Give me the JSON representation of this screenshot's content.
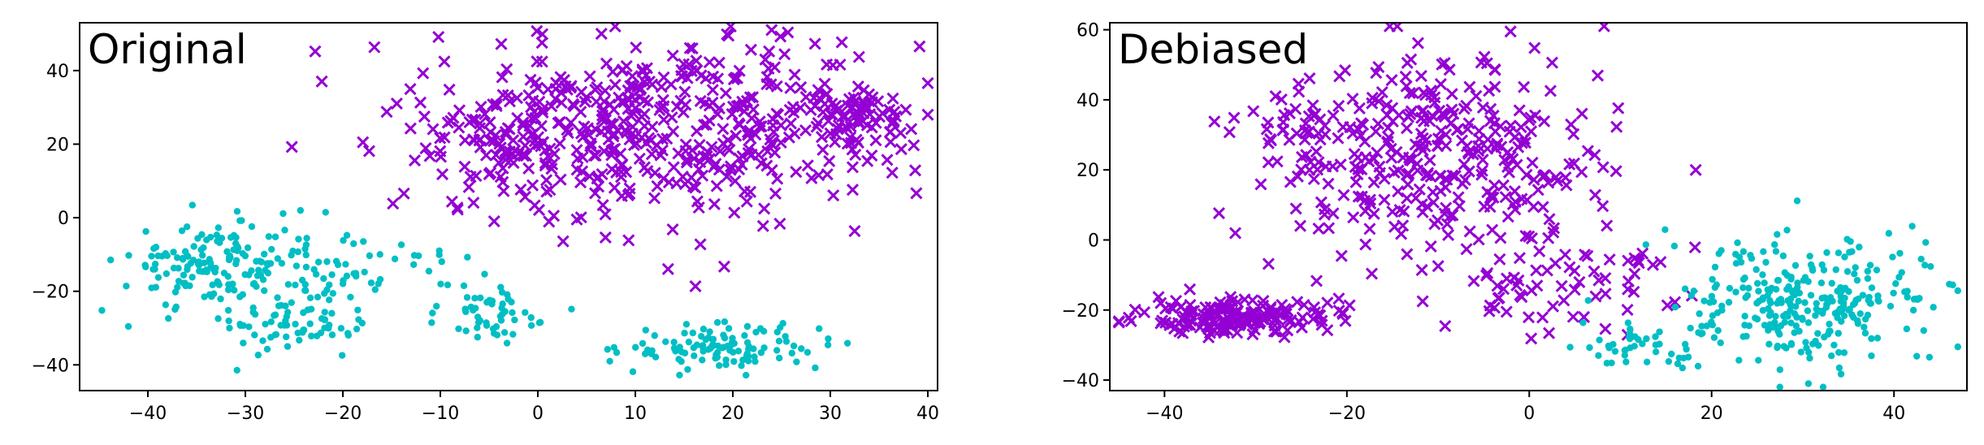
{
  "colors": {
    "group_a": "#00BFC4",
    "group_b": "#9400D3"
  },
  "chart_data": [
    {
      "type": "scatter",
      "title": "Original",
      "xlim": [
        -47,
        41
      ],
      "ylim": [
        -47,
        53
      ],
      "xticks": [
        -40,
        -30,
        -20,
        -10,
        0,
        10,
        20,
        30,
        40
      ],
      "yticks": [
        -40,
        -20,
        0,
        20,
        40
      ],
      "xtick_labels": [
        "−40",
        "−30",
        "−20",
        "−10",
        "0",
        "10",
        "20",
        "30",
        "40"
      ],
      "ytick_labels": [
        "−40",
        "−20",
        "0",
        "20",
        "40"
      ],
      "grid": false,
      "legend": false,
      "clusters": [
        {
          "marker": "dot",
          "color": "#00BFC4",
          "cx": -33,
          "cy": -13,
          "sx": 4.5,
          "sy": 6,
          "n": 160
        },
        {
          "marker": "dot",
          "color": "#00BFC4",
          "cx": -25,
          "cy": -30,
          "sx": 3,
          "sy": 4,
          "n": 55
        },
        {
          "marker": "dot",
          "color": "#00BFC4",
          "cx": -22,
          "cy": -16,
          "sx": 3,
          "sy": 8,
          "n": 45
        },
        {
          "marker": "dot",
          "color": "#00BFC4",
          "cx": -12,
          "cy": -14,
          "sx": 3,
          "sy": 3,
          "n": 20
        },
        {
          "marker": "dot",
          "color": "#00BFC4",
          "cx": -4,
          "cy": -26,
          "sx": 4,
          "sy": 4,
          "n": 50
        },
        {
          "marker": "dot",
          "color": "#00BFC4",
          "cx": 19,
          "cy": -35,
          "sx": 5,
          "sy": 3,
          "n": 110
        },
        {
          "marker": "x",
          "color": "#9400D3",
          "cx": 13,
          "cy": 25,
          "sx": 12,
          "sy": 13,
          "n": 480
        },
        {
          "marker": "x",
          "color": "#9400D3",
          "cx": 33,
          "cy": 27,
          "sx": 2.5,
          "sy": 3.5,
          "n": 60
        },
        {
          "marker": "x",
          "color": "#9400D3",
          "cx": -3,
          "cy": 20,
          "sx": 5,
          "sy": 7,
          "n": 60
        }
      ]
    },
    {
      "type": "scatter",
      "title": "Debiased",
      "xlim": [
        -46,
        48
      ],
      "ylim": [
        -43,
        62
      ],
      "xticks": [
        -40,
        -20,
        0,
        20,
        40
      ],
      "yticks": [
        -40,
        -20,
        0,
        20,
        40,
        60
      ],
      "xtick_labels": [
        "−40",
        "−20",
        "0",
        "20",
        "40"
      ],
      "ytick_labels": [
        "−40",
        "−20",
        "0",
        "20",
        "40",
        "60"
      ],
      "grid": false,
      "legend": false,
      "clusters": [
        {
          "marker": "x",
          "color": "#9400D3",
          "cx": -32,
          "cy": -22,
          "sx": 5,
          "sy": 2.5,
          "n": 170
        },
        {
          "marker": "x",
          "color": "#9400D3",
          "cx": -10,
          "cy": 25,
          "sx": 9,
          "sy": 15,
          "n": 330
        },
        {
          "marker": "x",
          "color": "#9400D3",
          "cx": 4,
          "cy": -12,
          "sx": 7,
          "sy": 8,
          "n": 70
        },
        {
          "marker": "x",
          "color": "#9400D3",
          "cx": -25,
          "cy": 30,
          "sx": 3,
          "sy": 6,
          "n": 35
        },
        {
          "marker": "dot",
          "color": "#00BFC4",
          "cx": 30,
          "cy": -18,
          "sx": 7,
          "sy": 9,
          "n": 300
        },
        {
          "marker": "dot",
          "color": "#00BFC4",
          "cx": 11,
          "cy": -31,
          "sx": 3,
          "sy": 3,
          "n": 35
        }
      ]
    }
  ]
}
